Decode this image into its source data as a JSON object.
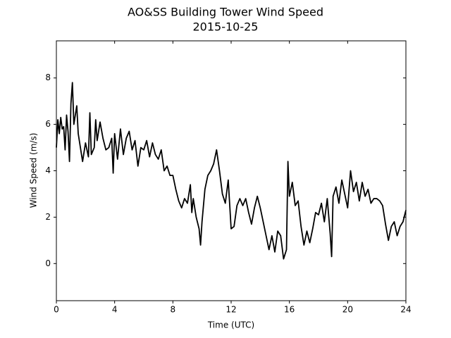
{
  "chart_data": {
    "type": "line",
    "title": "AO&SS Building Tower Wind Speed",
    "subtitle": "2015-10-25",
    "x_label": "Time (UTC)",
    "y_label": "Wind Speed (m/s)",
    "x": [
      0,
      0.1,
      0.2,
      0.3,
      0.4,
      0.5,
      0.6,
      0.7,
      0.8,
      0.9,
      1.0,
      1.1,
      1.2,
      1.4,
      1.5,
      1.6,
      1.8,
      2.0,
      2.2,
      2.3,
      2.4,
      2.6,
      2.7,
      2.8,
      3.0,
      3.2,
      3.4,
      3.6,
      3.8,
      3.9,
      4.0,
      4.2,
      4.4,
      4.6,
      4.8,
      5.0,
      5.2,
      5.4,
      5.6,
      5.8,
      6.0,
      6.2,
      6.4,
      6.6,
      6.8,
      7.0,
      7.2,
      7.4,
      7.6,
      7.8,
      8.0,
      8.2,
      8.4,
      8.6,
      8.8,
      9.0,
      9.2,
      9.3,
      9.4,
      9.6,
      9.8,
      9.9,
      10.0,
      10.2,
      10.4,
      10.6,
      10.8,
      11.0,
      11.2,
      11.4,
      11.6,
      11.8,
      12.0,
      12.2,
      12.4,
      12.6,
      12.8,
      13.0,
      13.2,
      13.4,
      13.6,
      13.8,
      14.0,
      14.2,
      14.4,
      14.6,
      14.8,
      15.0,
      15.2,
      15.4,
      15.6,
      15.8,
      15.9,
      16.0,
      16.2,
      16.4,
      16.6,
      16.8,
      17.0,
      17.2,
      17.4,
      17.6,
      17.8,
      18.0,
      18.2,
      18.4,
      18.6,
      18.8,
      18.9,
      19.0,
      19.2,
      19.4,
      19.6,
      19.8,
      20.0,
      20.2,
      20.4,
      20.6,
      20.8,
      21.0,
      21.2,
      21.4,
      21.6,
      21.8,
      22.0,
      22.2,
      22.4,
      22.6,
      22.8,
      23.0,
      23.2,
      23.4,
      23.6,
      23.8,
      24.0
    ],
    "series": [
      {
        "name": "Wind Speed",
        "color": "#000000",
        "values": [
          5.0,
          6.2,
          5.6,
          6.3,
          5.8,
          5.9,
          4.9,
          6.4,
          5.7,
          4.4,
          6.9,
          7.8,
          6.0,
          6.8,
          5.6,
          5.2,
          4.4,
          5.2,
          4.6,
          6.5,
          4.7,
          5.0,
          6.2,
          5.3,
          6.1,
          5.4,
          4.9,
          5.0,
          5.4,
          3.9,
          5.6,
          4.5,
          5.8,
          4.7,
          5.4,
          5.7,
          4.9,
          5.3,
          4.2,
          5.0,
          4.9,
          5.3,
          4.6,
          5.2,
          4.7,
          4.5,
          4.9,
          4.0,
          4.2,
          3.8,
          3.8,
          3.2,
          2.7,
          2.4,
          2.8,
          2.6,
          3.4,
          2.2,
          2.8,
          2.0,
          1.5,
          0.8,
          1.8,
          3.2,
          3.8,
          4.0,
          4.3,
          4.9,
          4.0,
          3.0,
          2.6,
          3.6,
          1.5,
          1.6,
          2.5,
          2.8,
          2.5,
          2.8,
          2.2,
          1.7,
          2.4,
          2.9,
          2.4,
          1.8,
          1.2,
          0.6,
          1.2,
          0.5,
          1.4,
          1.2,
          0.2,
          0.6,
          4.4,
          2.9,
          3.5,
          2.5,
          2.7,
          1.6,
          0.8,
          1.4,
          0.9,
          1.5,
          2.2,
          2.1,
          2.6,
          1.8,
          2.8,
          1.3,
          0.3,
          2.9,
          3.3,
          2.6,
          3.6,
          3.0,
          2.4,
          4.0,
          3.1,
          3.5,
          2.7,
          3.5,
          2.9,
          3.2,
          2.6,
          2.8,
          2.8,
          2.7,
          2.5,
          1.7,
          1.0,
          1.6,
          1.8,
          1.2,
          1.6,
          1.8,
          2.3
        ]
      }
    ],
    "xlim": [
      0,
      24
    ],
    "xticks": [
      0,
      4,
      8,
      12,
      16,
      20,
      24
    ],
    "ylim": [
      -1.6,
      9.6
    ],
    "yticks": [
      0,
      2,
      4,
      6,
      8
    ],
    "grid": false
  }
}
